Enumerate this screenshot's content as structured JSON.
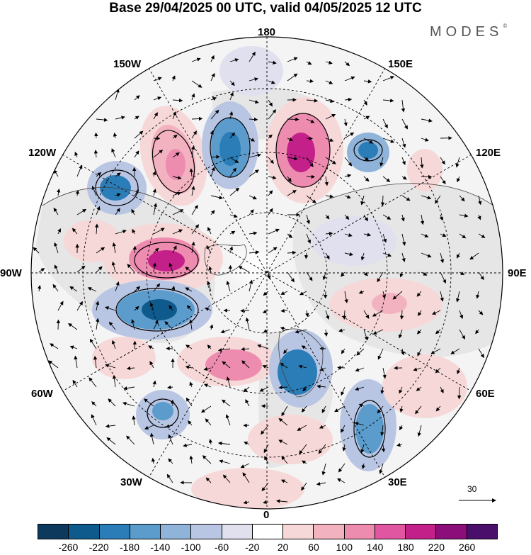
{
  "header": {
    "title": "Base 29/04/2025 00 UTC, valid 04/05/2025 12 UTC",
    "brand": "MODES",
    "brand_mark": "©"
  },
  "map": {
    "projection": "north polar stereographic",
    "longitude_labels": {
      "top": "180",
      "top_right": "150E",
      "right_upper": "120E",
      "right": "90E",
      "right_lower": "60E",
      "bottom_right": "30E",
      "bottom": "0",
      "bottom_left": "30W",
      "left_lower": "60W",
      "left": "90W",
      "left_upper": "120W",
      "top_left": "150W"
    },
    "reference_vector_label": "30",
    "colors": {
      "land_shading": "#e6e6e6",
      "graticule": "#000000",
      "vectors": "#000000"
    }
  },
  "legend": {
    "tick_labels": [
      "-260",
      "-220",
      "-180",
      "-140",
      "-100",
      "-60",
      "-20",
      "20",
      "60",
      "100",
      "140",
      "180",
      "220",
      "260"
    ],
    "colors": [
      "#0d3a5c",
      "#0f5a8c",
      "#2a7db7",
      "#5b9ccc",
      "#8fb3d9",
      "#b9c6e3",
      "#e0e0ef",
      "#ffffff",
      "#f7d8d8",
      "#f3b2c0",
      "#ee8cb0",
      "#e056a0",
      "#c4208a",
      "#8c0e7a",
      "#4a0f6b"
    ]
  }
}
